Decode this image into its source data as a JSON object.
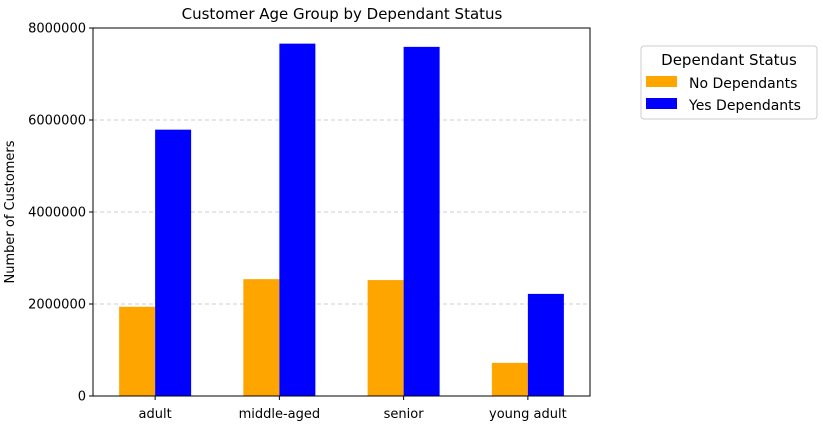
{
  "chart_data": {
    "type": "bar",
    "title": "Customer Age Group by Dependant Status",
    "xlabel": "",
    "ylabel": "Number of Customers",
    "categories": [
      "adult",
      "middle-aged",
      "senior",
      "young adult"
    ],
    "series": [
      {
        "name": "No Dependants",
        "color": "#ffa500",
        "values": [
          1940000,
          2540000,
          2520000,
          720000
        ]
      },
      {
        "name": "Yes Dependants",
        "color": "#0000ff",
        "values": [
          5790000,
          7660000,
          7590000,
          2220000
        ]
      }
    ],
    "ylim": [
      0,
      8000000
    ],
    "yticks": [
      "0",
      "2000000",
      "4000000",
      "6000000",
      "8000000"
    ],
    "ytick_values": [
      0,
      2000000,
      4000000,
      6000000,
      8000000
    ],
    "grid": "y, dashed",
    "legend": {
      "title": "Dependant Status",
      "placement": "outside right, top"
    }
  }
}
